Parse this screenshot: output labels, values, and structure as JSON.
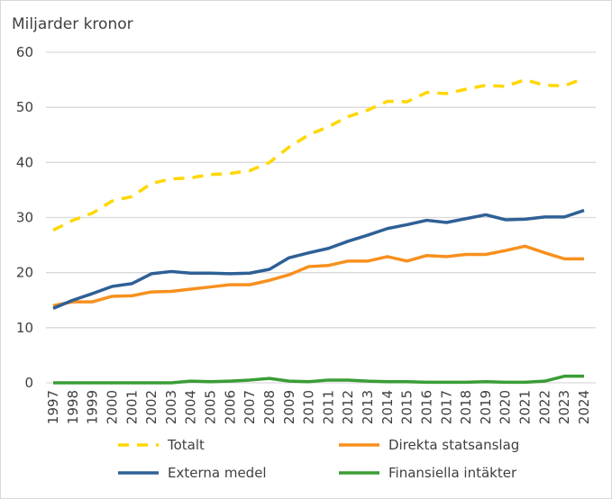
{
  "chart_data": {
    "type": "line",
    "ylabel": "Miljarder kronor",
    "ylim": [
      0,
      60
    ],
    "yticks": [
      0,
      10,
      20,
      30,
      40,
      50,
      60
    ],
    "x": [
      "1997",
      "1998",
      "1999",
      "2000",
      "2001",
      "2002",
      "2003",
      "2004",
      "2005",
      "2006",
      "2007",
      "2008",
      "2009",
      "2010",
      "2011",
      "2012",
      "2013",
      "2014",
      "2015",
      "2016",
      "2017",
      "2018",
      "2019",
      "2020",
      "2021",
      "2022",
      "2023",
      "2024"
    ],
    "grid": true,
    "legend_position": "bottom",
    "series": [
      {
        "name": "Totalt",
        "color": "#FFD700",
        "dashed": true,
        "values": [
          27.7,
          29.5,
          30.8,
          33,
          33.8,
          36.2,
          37,
          37.2,
          37.8,
          38,
          38.5,
          40,
          42.8,
          45,
          46.5,
          48.3,
          49.5,
          51.1,
          51,
          52.7,
          52.5,
          53.3,
          54,
          53.8,
          55,
          54,
          53.9,
          55.3
        ]
      },
      {
        "name": "Direkta statsanslag",
        "color": "#F7901E",
        "dashed": false,
        "values": [
          14,
          14.7,
          14.7,
          15.7,
          15.8,
          16.5,
          16.6,
          17,
          17.4,
          17.8,
          17.8,
          18.6,
          19.6,
          21.1,
          21.3,
          22.1,
          22.1,
          22.9,
          22.1,
          23.1,
          22.9,
          23.3,
          23.3,
          24,
          24.8,
          23.6,
          22.5,
          22.5
        ]
      },
      {
        "name": "Externa medel",
        "color": "#2E6096",
        "dashed": false,
        "values": [
          13.5,
          15,
          16.2,
          17.5,
          18,
          19.8,
          20.2,
          19.9,
          19.9,
          19.8,
          19.9,
          20.6,
          22.7,
          23.6,
          24.4,
          25.7,
          26.8,
          28,
          28.7,
          29.5,
          29.1,
          29.8,
          30.5,
          29.6,
          29.7,
          30.1,
          30.1,
          31.3
        ]
      },
      {
        "name": "Finansiella intäkter",
        "color": "#3A9D35",
        "dashed": false,
        "values": [
          0,
          0,
          0,
          0,
          0,
          0,
          0,
          0.3,
          0.2,
          0.3,
          0.5,
          0.8,
          0.3,
          0.2,
          0.5,
          0.5,
          0.3,
          0.2,
          0.2,
          0.1,
          0.1,
          0.1,
          0.2,
          0.1,
          0.1,
          0.3,
          1.2,
          1.2
        ]
      }
    ]
  }
}
